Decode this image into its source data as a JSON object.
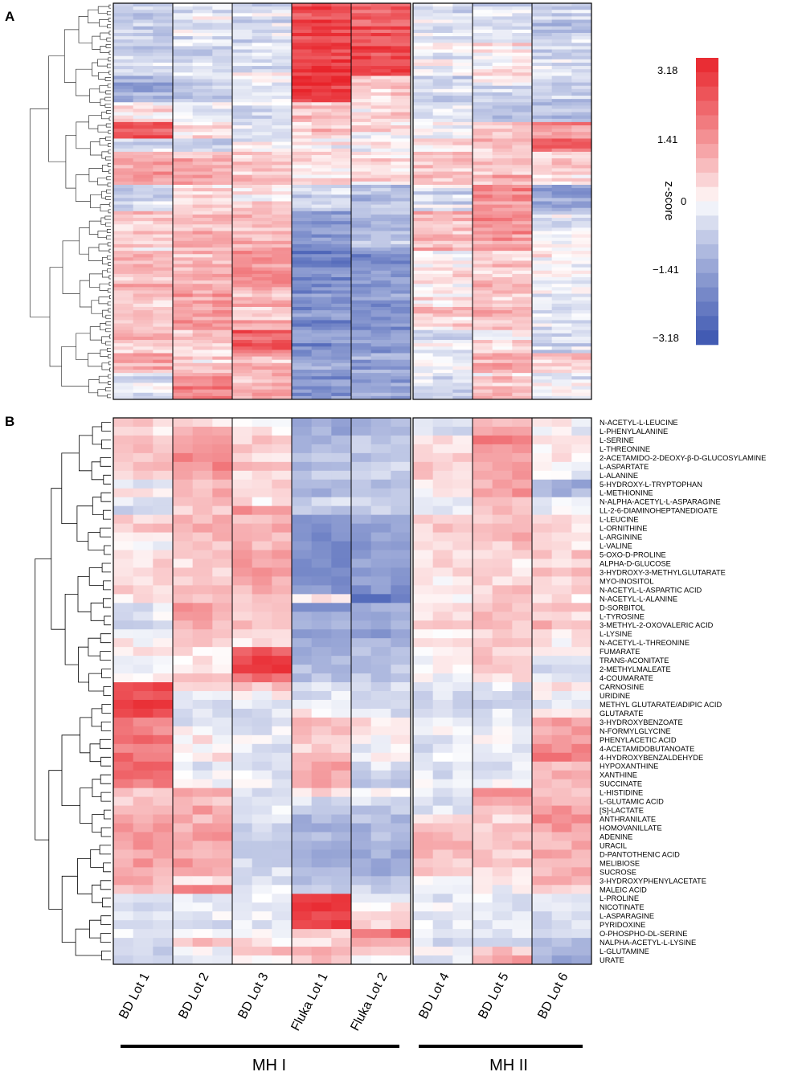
{
  "panel_labels": [
    "A",
    "B"
  ],
  "colorbar": {
    "title": "z-score",
    "ticks": [
      "3.18",
      "1.41",
      "0",
      "−1.41",
      "−3.18"
    ],
    "tick_values": [
      3.18,
      1.41,
      0,
      -1.41,
      -3.18
    ],
    "range": [
      -3.18,
      3.18
    ],
    "low_color": "#3a54b0",
    "mid_color": "#ffffff",
    "high_color": "#e8242b"
  },
  "groups": [
    {
      "label": "MH I",
      "lots": [
        "BD Lot 1",
        "BD Lot 2",
        "BD Lot 3",
        "Fluka Lot 1",
        "Fluka Lot 2"
      ]
    },
    {
      "label": "MH II",
      "lots": [
        "BD Lot 4",
        "BD Lot 5",
        "BD Lot 6"
      ]
    }
  ],
  "chart_data": [
    {
      "type": "heatmap",
      "panel": "A",
      "title": "",
      "xlabel": "",
      "ylabel": "",
      "columns": [
        "BD Lot 1",
        "BD Lot 2",
        "BD Lot 3",
        "Fluka Lot 1",
        "Fluka Lot 2",
        "BD Lot 4",
        "BD Lot 5",
        "BD Lot 6"
      ],
      "replicates_per_lot": 3,
      "row_count": 120,
      "value_range": [
        -3.18,
        3.18
      ],
      "block_profile": [
        {
          "rows": 12,
          "values": [
            -0.6,
            -0.3,
            -0.4,
            2.5,
            2.2,
            -0.3,
            -0.4,
            -0.8
          ]
        },
        {
          "rows": 10,
          "values": [
            -0.5,
            -0.4,
            -0.2,
            2.8,
            2.6,
            -0.2,
            0.2,
            -0.5
          ]
        },
        {
          "rows": 8,
          "values": [
            -1.3,
            -0.7,
            -0.3,
            2.9,
            0.5,
            -0.5,
            -0.3,
            -0.6
          ]
        },
        {
          "rows": 6,
          "values": [
            0.3,
            -0.2,
            -0.3,
            0.9,
            0.3,
            -0.5,
            -0.9,
            -1.0
          ]
        },
        {
          "rows": 5,
          "values": [
            2.4,
            0.4,
            -0.2,
            0.6,
            0.3,
            -0.2,
            0.6,
            1.4
          ]
        },
        {
          "rows": 4,
          "values": [
            -0.4,
            -0.4,
            -0.1,
            0.0,
            0.0,
            0.3,
            0.8,
            1.8
          ]
        },
        {
          "rows": 10,
          "values": [
            1.3,
            1.0,
            0.6,
            0.5,
            0.3,
            0.6,
            0.9,
            0.4
          ]
        },
        {
          "rows": 8,
          "values": [
            -0.6,
            0.4,
            0.4,
            -0.6,
            -0.9,
            -0.4,
            1.5,
            -1.4
          ]
        },
        {
          "rows": 12,
          "values": [
            0.5,
            0.8,
            0.9,
            -1.6,
            -1.1,
            0.8,
            1.3,
            -0.3
          ]
        },
        {
          "rows": 12,
          "values": [
            0.9,
            1.0,
            1.4,
            -2.1,
            -1.9,
            0.2,
            0.7,
            0.0
          ]
        },
        {
          "rows": 12,
          "values": [
            0.6,
            1.2,
            0.9,
            -1.9,
            -1.8,
            0.4,
            0.8,
            -0.2
          ]
        },
        {
          "rows": 7,
          "values": [
            0.7,
            0.5,
            2.1,
            -1.9,
            -1.6,
            -0.4,
            0.3,
            -0.6
          ]
        },
        {
          "rows": 6,
          "values": [
            1.0,
            0.5,
            0.9,
            -1.6,
            -1.6,
            -0.2,
            1.0,
            0.7
          ]
        },
        {
          "rows": 8,
          "values": [
            -0.3,
            1.7,
            1.0,
            -1.8,
            -1.6,
            -0.4,
            0.5,
            -0.2
          ]
        }
      ]
    },
    {
      "type": "heatmap",
      "panel": "B",
      "title": "",
      "xlabel": "",
      "ylabel": "",
      "columns": [
        "BD Lot 1",
        "BD Lot 2",
        "BD Lot 3",
        "Fluka Lot 1",
        "Fluka Lot 2",
        "BD Lot 4",
        "BD Lot 5",
        "BD Lot 6"
      ],
      "replicates_per_lot": 3,
      "rows": [
        {
          "name": "N-ACETYL-L-LEUCINE",
          "values": [
            0.6,
            0.4,
            0.2,
            -1.6,
            -1.2,
            -0.3,
            0.6,
            0.1
          ]
        },
        {
          "name": "L-PHENYLALANINE",
          "values": [
            0.4,
            0.8,
            0.3,
            -1.4,
            -1.0,
            -0.4,
            0.9,
            -0.2
          ]
        },
        {
          "name": "L-SERINE",
          "values": [
            0.7,
            1.2,
            0.5,
            -1.3,
            -0.8,
            0.3,
            1.8,
            0.6
          ]
        },
        {
          "name": "L-THREONINE",
          "values": [
            0.9,
            1.3,
            0.6,
            -1.0,
            -0.7,
            0.2,
            1.5,
            0.3
          ]
        },
        {
          "name": "2-ACETAMIDO-2-DEOXY-β-D-GLUCOSYLAMINE",
          "values": [
            0.5,
            1.6,
            0.4,
            -0.9,
            -0.9,
            0.4,
            1.1,
            0.2
          ]
        },
        {
          "name": "L-ASPARTATE",
          "values": [
            0.6,
            1.5,
            0.7,
            -1.1,
            -0.6,
            0.6,
            1.2,
            0.1
          ]
        },
        {
          "name": "L-ALANINE",
          "values": [
            0.3,
            1.1,
            0.5,
            -0.8,
            -0.8,
            0.5,
            1.3,
            -0.3
          ]
        },
        {
          "name": "5-HYDROXY-L-TRYPTOPHAN",
          "values": [
            -0.3,
            0.8,
            0.4,
            -0.9,
            -1.0,
            0.3,
            1.0,
            -1.3
          ]
        },
        {
          "name": "L-METHIONINE",
          "values": [
            0.2,
            0.9,
            0.6,
            -1.2,
            -0.9,
            0.2,
            1.4,
            -1.1
          ]
        },
        {
          "name": "N-ALPHA-ACETYL-L-ASPARAGINE",
          "values": [
            -0.2,
            0.7,
            0.3,
            -0.6,
            -0.5,
            -0.4,
            0.5,
            -0.4
          ]
        },
        {
          "name": "LL-2-6-DIAMINOHEPTANEDIOATE",
          "values": [
            -0.6,
            0.6,
            1.4,
            -0.8,
            -0.6,
            -0.3,
            0.7,
            -0.1
          ]
        },
        {
          "name": "L-LEUCINE",
          "values": [
            0.4,
            1.0,
            0.8,
            -1.8,
            -1.2,
            0.4,
            0.8,
            0.5
          ]
        },
        {
          "name": "L-ORNITHINE",
          "values": [
            0.6,
            1.1,
            1.0,
            -1.9,
            -1.4,
            0.6,
            1.0,
            0.4
          ]
        },
        {
          "name": "L-ARGININE",
          "values": [
            0.2,
            0.9,
            0.7,
            -2.0,
            -1.5,
            0.3,
            0.9,
            0.2
          ]
        },
        {
          "name": "L-VALINE",
          "values": [
            -0.1,
            0.8,
            0.9,
            -2.0,
            -1.6,
            0.5,
            0.6,
            0.3
          ]
        },
        {
          "name": "5-OXO-D-PROLINE",
          "values": [
            0.3,
            0.7,
            1.2,
            -2.0,
            -1.5,
            0.4,
            0.5,
            0.6
          ]
        },
        {
          "name": "ALPHA-D-GLUCOSE",
          "values": [
            0.4,
            0.4,
            1.3,
            -2.0,
            -1.5,
            0.5,
            0.3,
            0.4
          ]
        },
        {
          "name": "3-HYDROXY-3-METHYLGLUTARATE",
          "values": [
            0.5,
            0.6,
            1.5,
            -1.9,
            -1.6,
            0.3,
            0.5,
            0.7
          ]
        },
        {
          "name": "MYO-INOSITOL",
          "values": [
            0.3,
            0.5,
            1.0,
            -2.0,
            -1.7,
            0.1,
            0.4,
            0.5
          ]
        },
        {
          "name": "N-ACETYL-L-ASPARTIC ACID",
          "values": [
            0.5,
            0.8,
            0.9,
            -1.8,
            -1.8,
            0.3,
            0.6,
            0.4
          ]
        },
        {
          "name": "N-ACETYL-L-ALANINE",
          "values": [
            0.2,
            0.6,
            0.7,
            0.3,
            -2.4,
            0.2,
            0.5,
            0.2
          ]
        },
        {
          "name": "D-SORBITOL",
          "values": [
            -0.4,
            1.2,
            0.8,
            -1.7,
            -1.3,
            0.4,
            0.8,
            0.6
          ]
        },
        {
          "name": "L-TYROSINE",
          "values": [
            -0.3,
            1.1,
            0.6,
            -1.5,
            -1.2,
            0.3,
            0.7,
            0.5
          ]
        },
        {
          "name": "3-METHYL-2-OXOVALERIC ACID",
          "values": [
            -0.5,
            0.9,
            0.7,
            -1.4,
            -1.4,
            0.4,
            0.7,
            0.9
          ]
        },
        {
          "name": "L-LYSINE",
          "values": [
            -0.2,
            0.8,
            0.5,
            -1.6,
            -1.7,
            0.2,
            0.5,
            0.3
          ]
        },
        {
          "name": "N-ACETYL-L-THREONINE",
          "values": [
            0.1,
            0.6,
            0.4,
            -1.3,
            -1.2,
            0.1,
            0.6,
            0.2
          ]
        },
        {
          "name": "FUMARATE",
          "values": [
            0.1,
            0.3,
            2.3,
            -1.2,
            -1.1,
            0.3,
            0.5,
            -0.1
          ]
        },
        {
          "name": "TRANS-ACONITATE",
          "values": [
            -0.3,
            0.2,
            2.6,
            -1.1,
            -1.0,
            0.1,
            0.6,
            -0.2
          ]
        },
        {
          "name": "2-METHYLMALEATE",
          "values": [
            -0.2,
            0.4,
            2.8,
            -1.1,
            -0.9,
            0.2,
            0.5,
            -0.4
          ]
        },
        {
          "name": "4-COUMARATE",
          "values": [
            0.0,
            0.5,
            1.9,
            -0.9,
            -0.8,
            -0.1,
            0.2,
            -0.3
          ]
        },
        {
          "name": "CARNOSINE",
          "values": [
            2.6,
            0.2,
            0.6,
            -0.5,
            -0.6,
            -0.4,
            -0.3,
            0.2
          ]
        },
        {
          "name": "URIDINE",
          "values": [
            2.3,
            -0.2,
            0.1,
            -0.4,
            -0.4,
            -0.5,
            -0.5,
            -0.1
          ]
        },
        {
          "name": "METHYL GLUTARATE/ADIPIC ACID",
          "values": [
            2.8,
            -0.4,
            -0.4,
            -0.3,
            -0.5,
            -0.6,
            -0.6,
            -0.2
          ]
        },
        {
          "name": "GLUTARATE",
          "values": [
            2.5,
            -0.3,
            -0.4,
            0.2,
            -0.4,
            -0.5,
            -0.4,
            0.3
          ]
        },
        {
          "name": "3-HYDROXYBENZOATE",
          "values": [
            1.8,
            -0.4,
            -0.5,
            0.8,
            0.4,
            -0.4,
            -0.3,
            1.2
          ]
        },
        {
          "name": "N-FORMYLGLYCINE",
          "values": [
            1.6,
            -0.1,
            -0.3,
            0.6,
            0.3,
            -0.2,
            -0.2,
            1.1
          ]
        },
        {
          "name": "PHENYLACETIC ACID",
          "values": [
            1.9,
            0.2,
            -0.2,
            0.7,
            0.1,
            -0.3,
            -0.1,
            1.4
          ]
        },
        {
          "name": "4-ACETAMIDOBUTANOATE",
          "values": [
            1.7,
            0.1,
            -0.3,
            0.5,
            -0.2,
            -0.4,
            -0.2,
            1.6
          ]
        },
        {
          "name": "4-HYDROXYBENZALDEHYDE",
          "values": [
            1.9,
            0.3,
            -0.2,
            0.6,
            -0.1,
            -0.3,
            0.0,
            1.7
          ]
        },
        {
          "name": "HYPOXANTHINE",
          "values": [
            2.1,
            -0.3,
            -0.4,
            1.1,
            -0.4,
            -0.4,
            -0.4,
            0.9
          ]
        },
        {
          "name": "XANTHINE",
          "values": [
            2.2,
            -0.2,
            -0.3,
            1.2,
            -0.6,
            -0.4,
            -0.3,
            0.8
          ]
        },
        {
          "name": "SUCCINATE",
          "values": [
            1.6,
            -0.1,
            -0.2,
            1.0,
            -0.7,
            -0.2,
            -0.2,
            1.0
          ]
        },
        {
          "name": "L-HISTIDINE",
          "values": [
            0.7,
            0.9,
            -0.4,
            0.3,
            0.2,
            -0.2,
            1.7,
            0.8
          ]
        },
        {
          "name": "L-GLUTAMIC ACID",
          "values": [
            0.5,
            0.8,
            -0.6,
            -0.5,
            -0.4,
            -0.4,
            0.9,
            0.7
          ]
        },
        {
          "name": "[S]-LACTATE",
          "values": [
            1.0,
            1.1,
            -0.3,
            -0.9,
            -0.9,
            -0.3,
            0.6,
            1.3
          ]
        },
        {
          "name": "ANTHRANILATE",
          "values": [
            1.1,
            0.9,
            -0.5,
            -1.2,
            -1.0,
            0.3,
            0.5,
            1.4
          ]
        },
        {
          "name": "HOMOVANILLATE",
          "values": [
            1.2,
            1.0,
            -0.6,
            -1.3,
            -1.2,
            0.5,
            0.7,
            1.3
          ]
        },
        {
          "name": "ADENINE",
          "values": [
            1.3,
            1.2,
            -0.5,
            -1.2,
            -1.1,
            0.8,
            0.6,
            1.0
          ]
        },
        {
          "name": "URACIL",
          "values": [
            1.2,
            1.1,
            -0.6,
            -1.3,
            -1.2,
            0.9,
            0.7,
            0.9
          ]
        },
        {
          "name": "D-PANTOTHENIC ACID",
          "values": [
            1.1,
            1.0,
            -0.7,
            -1.2,
            -1.3,
            0.8,
            0.5,
            1.0
          ]
        },
        {
          "name": "MELIBIOSE",
          "values": [
            1.2,
            1.2,
            -0.6,
            -1.1,
            -1.4,
            0.7,
            0.6,
            0.8
          ]
        },
        {
          "name": "SUCROSE",
          "values": [
            1.0,
            0.9,
            -0.5,
            -1.2,
            -1.3,
            0.6,
            0.4,
            0.9
          ]
        },
        {
          "name": "3-HYDROXYPHENYLACETATE",
          "values": [
            0.9,
            0.4,
            -0.3,
            -0.9,
            -1.1,
            0.1,
            0.2,
            1.2
          ]
        },
        {
          "name": "MALEIC ACID",
          "values": [
            0.6,
            1.8,
            -0.2,
            -0.8,
            -0.7,
            -0.2,
            -0.1,
            0.6
          ]
        },
        {
          "name": "L-PROLINE",
          "values": [
            -0.4,
            -0.3,
            -0.2,
            2.6,
            -0.1,
            -0.3,
            -0.3,
            -0.4
          ]
        },
        {
          "name": "NICOTINATE",
          "values": [
            -0.5,
            -0.2,
            -0.3,
            2.9,
            0.3,
            -0.2,
            -0.4,
            -0.3
          ]
        },
        {
          "name": "L-ASPARAGINE",
          "values": [
            -0.3,
            -0.3,
            -0.1,
            2.7,
            0.2,
            -0.4,
            -0.3,
            -0.5
          ]
        },
        {
          "name": "PYRIDOXINE",
          "values": [
            -0.4,
            -0.4,
            -0.3,
            2.8,
            0.5,
            -0.3,
            -0.3,
            -0.4
          ]
        },
        {
          "name": "O-PHOSPHO-DL-SERINE",
          "values": [
            -0.2,
            -0.3,
            -0.2,
            0.6,
            2.0,
            -0.2,
            -0.3,
            -0.5
          ]
        },
        {
          "name": "NALPHA-ACETYL-L-LYSINE",
          "values": [
            -0.5,
            0.8,
            0.3,
            0.4,
            1.2,
            -0.5,
            -0.4,
            -1.2
          ]
        },
        {
          "name": "L-GLUTAMINE",
          "values": [
            -0.6,
            -0.2,
            1.0,
            1.1,
            0.4,
            -0.2,
            0.7,
            -1.3
          ]
        },
        {
          "name": "URATE",
          "values": [
            -0.8,
            -0.5,
            0.2,
            0.6,
            -0.3,
            -0.4,
            1.1,
            -1.4
          ]
        }
      ]
    }
  ]
}
